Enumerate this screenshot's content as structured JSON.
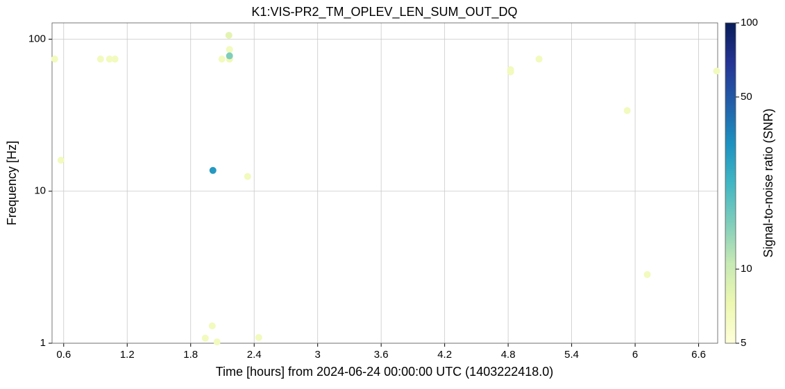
{
  "chart_data": {
    "type": "scatter",
    "title": "K1:VIS-PR2_TM_OPLEV_LEN_SUM_OUT_DQ",
    "x_label": "Time [hours] from 2024-06-24 00:00:00 UTC (1403222418.0)",
    "y_label": "Frequency [Hz]",
    "colorbar_label": "Signal-to-noise ratio (SNR)",
    "x": [
      0.515,
      0.574,
      0.948,
      1.033,
      1.085,
      1.938,
      2.003,
      2.049,
      2.095,
      2.161,
      2.167,
      2.167,
      2.338,
      2.443,
      4.823,
      4.823,
      5.092,
      5.925,
      6.115,
      6.77,
      2.167,
      2.01
    ],
    "values": [
      74,
      16,
      74,
      74,
      74,
      1.08,
      1.3,
      1.02,
      74,
      106,
      85.5,
      74,
      12.5,
      1.09,
      63,
      61,
      74,
      33.9,
      2.83,
      61.7,
      77.7,
      13.7
    ],
    "snr": [
      6.5,
      6.5,
      6.5,
      6.5,
      6.5,
      6.5,
      6.5,
      6.5,
      6.5,
      8,
      6.5,
      7,
      6.5,
      6.5,
      6.5,
      6.5,
      6.5,
      6.5,
      6.5,
      6.5,
      15.4,
      30
    ],
    "xlim": [
      0.49,
      6.78
    ],
    "ylim": [
      1,
      128
    ],
    "ylog": true,
    "xticks": [
      0.6,
      1.2,
      1.8,
      2.4,
      3,
      3.6,
      4.2,
      4.8,
      5.4,
      6,
      6.6
    ],
    "yticks": [
      1,
      10,
      100
    ],
    "grid": true,
    "clim": [
      5,
      100
    ],
    "clog": true,
    "cticks": [
      5,
      10,
      50,
      100
    ],
    "colormap": [
      "#ffffd9",
      "#edf8b1",
      "#c7e9b4",
      "#7fcdbb",
      "#41b6c4",
      "#1d91c0",
      "#225ea8",
      "#253494",
      "#081d58"
    ]
  }
}
